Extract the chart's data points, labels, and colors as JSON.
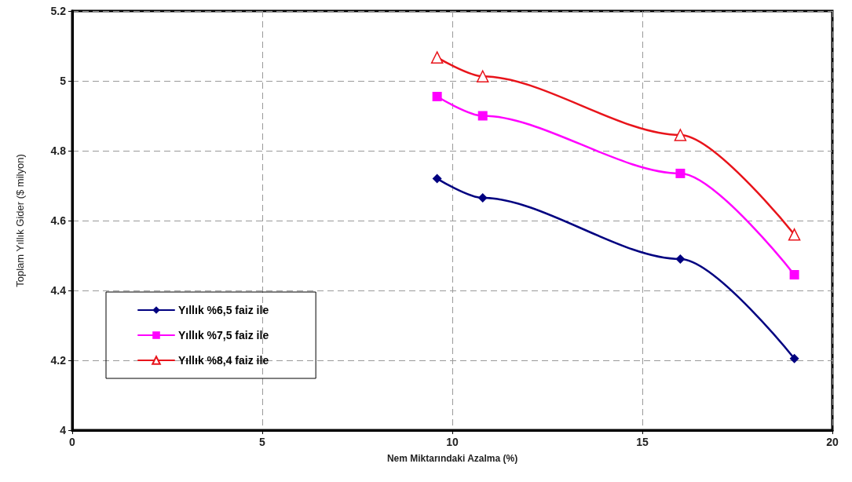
{
  "chart_data": {
    "type": "line",
    "xlabel": "Nem Miktarındaki Azalma (%)",
    "ylabel": "Toplam Yıllık Gider ($ milyon)",
    "x": [
      9.6,
      10.8,
      16,
      19
    ],
    "series": [
      {
        "name": "Yıllık %6,5 faiz ile",
        "color": "#000080",
        "marker": "diamond",
        "values": [
          4.72,
          4.665,
          4.49,
          4.205
        ]
      },
      {
        "name": "Yıllık %7,5 faiz ile",
        "color": "#ff00ff",
        "marker": "square",
        "values": [
          4.955,
          4.9,
          4.735,
          4.445
        ]
      },
      {
        "name": "Yıllık %8,4 faiz ile",
        "color": "#e8141b",
        "marker": "triangle",
        "values": [
          5.067,
          5.013,
          4.845,
          4.56
        ]
      }
    ],
    "xlim": [
      0,
      20
    ],
    "xticks": [
      0,
      5,
      10,
      15,
      20
    ],
    "ylim": [
      4,
      5.2
    ],
    "yticks": [
      4,
      4.2,
      4.4,
      4.6,
      4.8,
      5,
      5.2
    ],
    "grid": true,
    "legend": "bottom left",
    "line_style": "solid"
  }
}
